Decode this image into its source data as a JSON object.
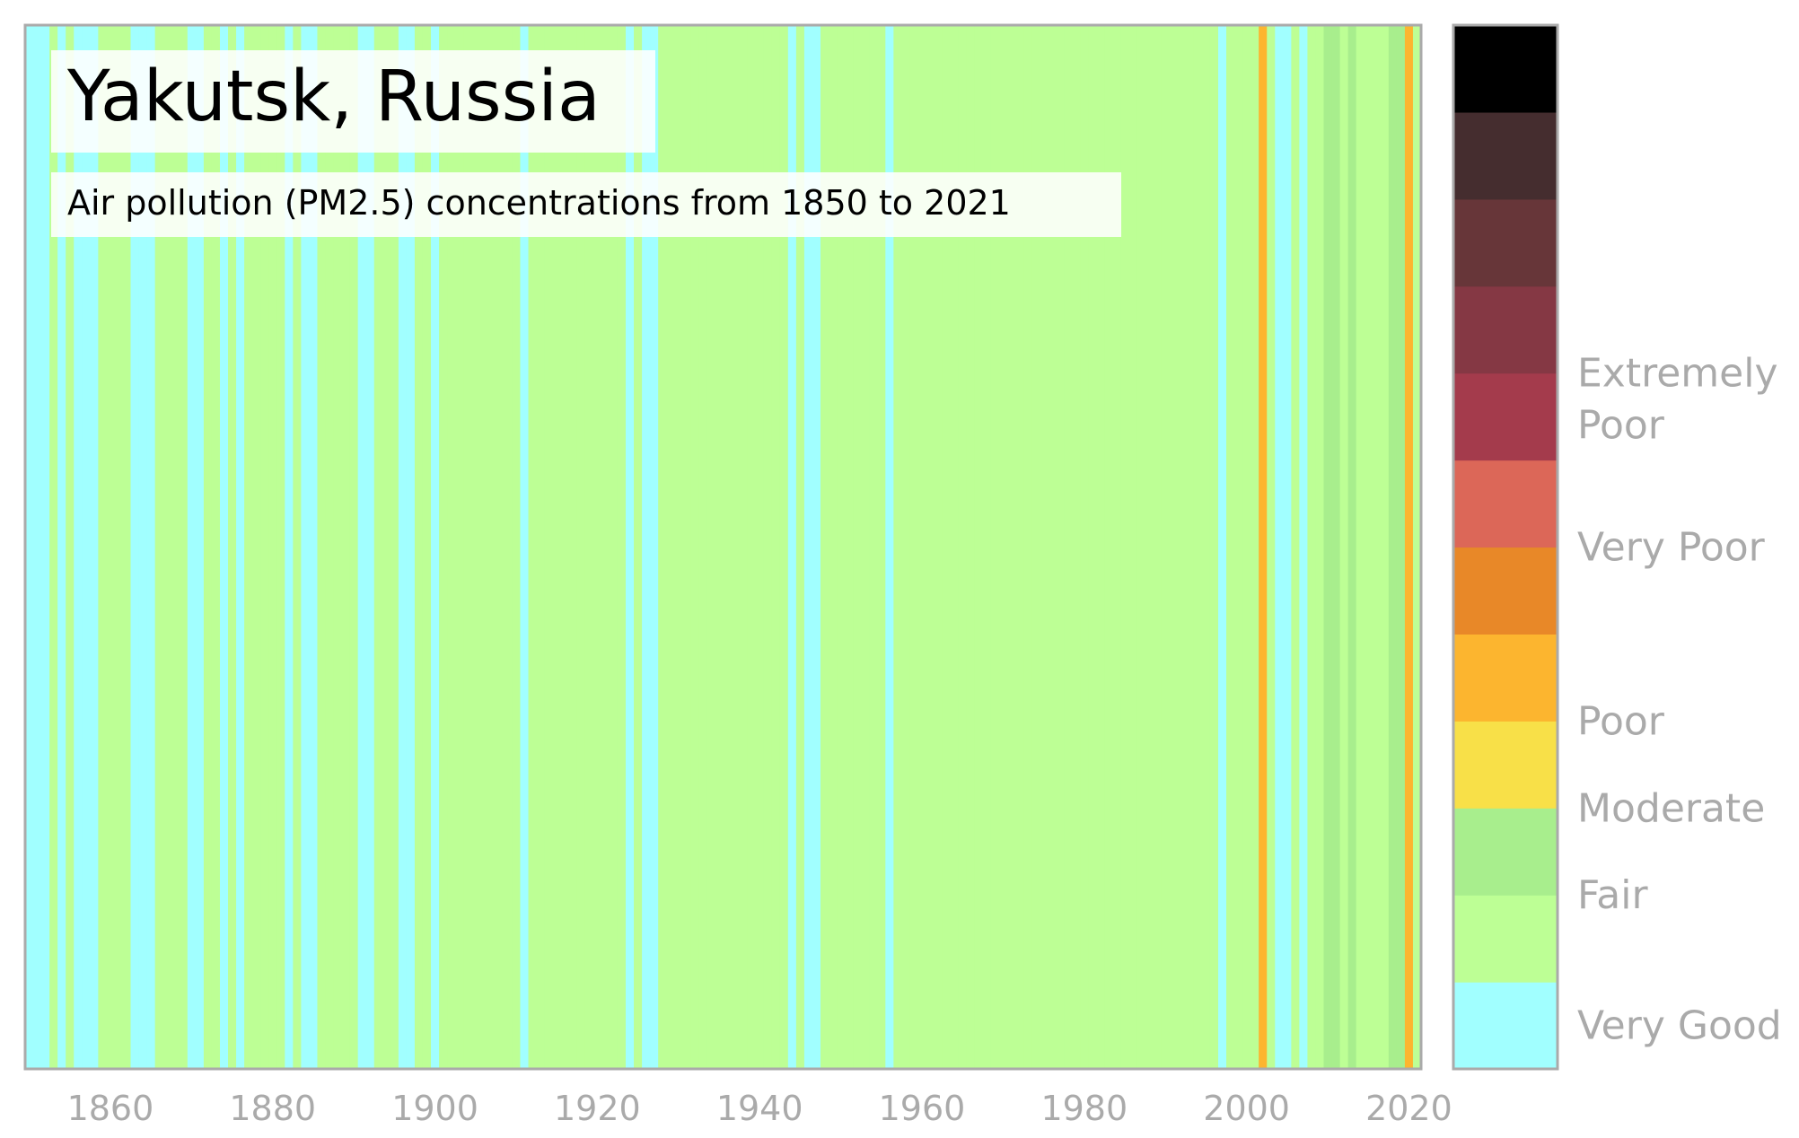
{
  "chart_data": {
    "type": "heatmap",
    "title": "Yakutsk, Russia",
    "subtitle": "Air pollution (PM2.5) concentrations from 1850 to 2021",
    "x_range": [
      1850,
      2021
    ],
    "x_ticks": [
      1860,
      1880,
      1900,
      1920,
      1940,
      1960,
      1980,
      2000,
      2020
    ],
    "grid": false,
    "legend_position": "right",
    "colorbar": {
      "levels": [
        "#a1ffff",
        "#bdff95",
        "#a8ee8d",
        "#f8e048",
        "#fcb52f",
        "#e88828",
        "#dc6758",
        "#a43b4c",
        "#853844",
        "#673639",
        "#452d2f",
        "#000000"
      ],
      "labels": [
        {
          "text": "Very Good",
          "level": 0.5
        },
        {
          "text": "Fair",
          "level": 2.0
        },
        {
          "text": "Moderate",
          "level": 3.0
        },
        {
          "text": "Poor",
          "level": 4.0
        },
        {
          "text": "Very Poor",
          "level": 6.0
        },
        {
          "text": "Extremely Poor",
          "level": 7.7
        }
      ]
    },
    "default_level": 1,
    "year_levels": [
      {
        "year": 1850,
        "level": 0
      },
      {
        "year": 1851,
        "level": 0
      },
      {
        "year": 1852,
        "level": 0
      },
      {
        "year": 1854,
        "level": 0
      },
      {
        "year": 1856,
        "level": 0
      },
      {
        "year": 1857,
        "level": 0
      },
      {
        "year": 1858,
        "level": 0
      },
      {
        "year": 1863,
        "level": 0
      },
      {
        "year": 1864,
        "level": 0
      },
      {
        "year": 1865,
        "level": 0
      },
      {
        "year": 1870,
        "level": 0
      },
      {
        "year": 1871,
        "level": 0
      },
      {
        "year": 1874,
        "level": 0
      },
      {
        "year": 1876,
        "level": 0
      },
      {
        "year": 1882,
        "level": 0
      },
      {
        "year": 1884,
        "level": 0
      },
      {
        "year": 1885,
        "level": 0
      },
      {
        "year": 1891,
        "level": 0
      },
      {
        "year": 1892,
        "level": 0
      },
      {
        "year": 1896,
        "level": 0
      },
      {
        "year": 1897,
        "level": 0
      },
      {
        "year": 1900,
        "level": 0
      },
      {
        "year": 1911,
        "level": 0
      },
      {
        "year": 1924,
        "level": 0
      },
      {
        "year": 1926,
        "level": 0
      },
      {
        "year": 1927,
        "level": 0
      },
      {
        "year": 1944,
        "level": 0
      },
      {
        "year": 1946,
        "level": 0
      },
      {
        "year": 1947,
        "level": 0
      },
      {
        "year": 1956,
        "level": 0
      },
      {
        "year": 1997,
        "level": 0
      },
      {
        "year": 2002,
        "level": 4
      },
      {
        "year": 2004,
        "level": 0
      },
      {
        "year": 2005,
        "level": 0
      },
      {
        "year": 2007,
        "level": 0
      },
      {
        "year": 2010,
        "level": 2
      },
      {
        "year": 2011,
        "level": 2
      },
      {
        "year": 2013,
        "level": 2
      },
      {
        "year": 2018,
        "level": 2
      },
      {
        "year": 2019,
        "level": 2
      },
      {
        "year": 2020,
        "level": 4
      }
    ]
  }
}
